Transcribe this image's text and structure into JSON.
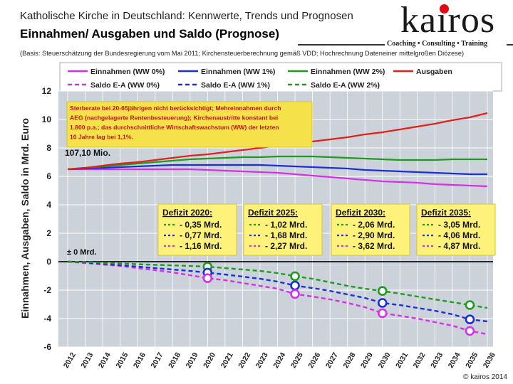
{
  "header": {
    "title": "Katholische Kirche in Deutschland: Kennwerte, Trends und Prognosen",
    "subtitle": "Einnahmen/ Ausgaben und Saldo (Prognose)",
    "logo": "kairos",
    "tagline": "Coaching • Consulting • Training",
    "basis": "(Basis: Steuerschätzung der Bundesregierung vom Mai 2011; Kirchensteuerberechnung gemäß VDD; Hochrechnung Dateneiner mittelgroßen Diözese)",
    "copyright": "© kairos 2014"
  },
  "colors": {
    "magenta": "#d630e6",
    "blue": "#1a2fd6",
    "green": "#1e9a1e",
    "red": "#e0201a",
    "plot_bg": "#ccd2da",
    "note_bg": "#f5e14a",
    "box_bg": "#fff27a"
  },
  "chart_data": {
    "type": "line",
    "ylabel": "Einnahmen, Ausgaben, Saldo in Mrd. Euro",
    "xlabel": "",
    "ylim": [
      -6,
      12
    ],
    "yticks": [
      -6,
      -4,
      -2,
      0,
      2,
      4,
      6,
      8,
      10,
      12
    ],
    "grid": true,
    "categories": [
      "2012",
      "2013",
      "2014",
      "2015",
      "2016",
      "2017",
      "2018",
      "2019",
      "2020",
      "2021",
      "2022",
      "2023",
      "2024",
      "2025",
      "2026",
      "2027",
      "2028",
      "2029",
      "2030",
      "2031",
      "2032",
      "2033",
      "2034",
      "2035",
      "2036"
    ],
    "legend": [
      {
        "name": "Einnahmen (WW 0%)",
        "color": "#d630e6",
        "dash": false
      },
      {
        "name": "Einnahmen (WW 1%)",
        "color": "#1a2fd6",
        "dash": false
      },
      {
        "name": "Einnahmen (WW 2%)",
        "color": "#1e9a1e",
        "dash": false
      },
      {
        "name": "Ausgaben",
        "color": "#e0201a",
        "dash": false
      },
      {
        "name": "Saldo E-A (WW 0%)",
        "color": "#d630e6",
        "dash": true
      },
      {
        "name": "Saldo E-A (WW 1%)",
        "color": "#1a2fd6",
        "dash": true
      },
      {
        "name": "Saldo E-A (WW 2%)",
        "color": "#1e9a1e",
        "dash": true
      }
    ],
    "series": [
      {
        "name": "Einnahmen (WW 0%)",
        "color": "#d630e6",
        "dash": false,
        "values": [
          6.5,
          6.5,
          6.5,
          6.5,
          6.5,
          6.5,
          6.5,
          6.5,
          6.45,
          6.4,
          6.35,
          6.3,
          6.25,
          6.15,
          6.05,
          5.95,
          5.85,
          5.75,
          5.65,
          5.6,
          5.55,
          5.45,
          5.4,
          5.35,
          5.3
        ]
      },
      {
        "name": "Einnahmen (WW 1%)",
        "color": "#1a2fd6",
        "dash": false,
        "values": [
          6.5,
          6.55,
          6.6,
          6.65,
          6.7,
          6.75,
          6.8,
          6.8,
          6.8,
          6.8,
          6.8,
          6.8,
          6.75,
          6.7,
          6.65,
          6.6,
          6.55,
          6.45,
          6.4,
          6.35,
          6.3,
          6.25,
          6.2,
          6.15,
          6.15
        ]
      },
      {
        "name": "Einnahmen (WW 2%)",
        "color": "#1e9a1e",
        "dash": false,
        "values": [
          6.5,
          6.6,
          6.7,
          6.8,
          6.9,
          7.0,
          7.1,
          7.2,
          7.25,
          7.3,
          7.35,
          7.35,
          7.4,
          7.4,
          7.4,
          7.35,
          7.3,
          7.25,
          7.2,
          7.15,
          7.15,
          7.15,
          7.2,
          7.2,
          7.2
        ]
      },
      {
        "name": "Ausgaben",
        "color": "#e0201a",
        "dash": false,
        "values": [
          6.5,
          6.6,
          6.75,
          6.9,
          7.0,
          7.15,
          7.3,
          7.45,
          7.55,
          7.7,
          7.85,
          8.0,
          8.15,
          8.3,
          8.45,
          8.6,
          8.75,
          8.95,
          9.1,
          9.3,
          9.5,
          9.7,
          9.95,
          10.15,
          10.45
        ]
      },
      {
        "name": "Saldo E-A (WW 0%)",
        "color": "#d630e6",
        "dash": true,
        "values": [
          0,
          -0.1,
          -0.2,
          -0.3,
          -0.45,
          -0.6,
          -0.75,
          -0.95,
          -1.16,
          -1.3,
          -1.5,
          -1.7,
          -1.9,
          -2.27,
          -2.45,
          -2.65,
          -2.9,
          -3.2,
          -3.62,
          -3.8,
          -4.0,
          -4.25,
          -4.5,
          -4.87,
          -5.1
        ]
      },
      {
        "name": "Saldo E-A (WW 1%)",
        "color": "#1a2fd6",
        "dash": true,
        "values": [
          0,
          -0.05,
          -0.15,
          -0.25,
          -0.35,
          -0.45,
          -0.55,
          -0.65,
          -0.77,
          -0.9,
          -1.05,
          -1.2,
          -1.4,
          -1.68,
          -1.85,
          -2.05,
          -2.3,
          -2.55,
          -2.9,
          -3.05,
          -3.25,
          -3.45,
          -3.7,
          -4.06,
          -4.2
        ]
      },
      {
        "name": "Saldo E-A (WW 2%)",
        "color": "#1e9a1e",
        "dash": true,
        "values": [
          0,
          -0.02,
          -0.08,
          -0.12,
          -0.18,
          -0.22,
          -0.26,
          -0.3,
          -0.35,
          -0.45,
          -0.55,
          -0.65,
          -0.8,
          -1.02,
          -1.2,
          -1.45,
          -1.7,
          -1.9,
          -2.06,
          -2.25,
          -2.45,
          -2.65,
          -2.85,
          -3.05,
          -3.25
        ]
      }
    ],
    "markers": [
      {
        "year": "2020",
        "values": [
          -0.35,
          -0.77,
          -1.16
        ]
      },
      {
        "year": "2025",
        "values": [
          -1.02,
          -1.68,
          -2.27
        ]
      },
      {
        "year": "2030",
        "values": [
          -2.06,
          -2.9,
          -3.62
        ]
      },
      {
        "year": "2035",
        "values": [
          -3.05,
          -4.06,
          -4.87
        ]
      }
    ],
    "annotations": {
      "note_lines": [
        "Sterberate bei 20-65jährigen nicht berücksichtigt; Mehreinnahmen durch",
        "AEG (nachgelagerte Rentenbesteuerung); Kirchenaustritte konstant bei",
        "1.800 p.a.; das durchschnittliche Wirtschaftswachstum (WW) der letzten",
        "10 Jahre lag bei 1,1%."
      ],
      "start_label": "107,10 Mio.",
      "zero_label": "± 0 Mrd."
    },
    "deficit_boxes": [
      {
        "title": "Defizit 2020:",
        "lines": [
          "- 0,35 Mrd.",
          "- 0,77 Mrd.",
          "- 1,16 Mrd."
        ]
      },
      {
        "title": "Defizit 2025:",
        "lines": [
          "- 1,02 Mrd.",
          "- 1,68 Mrd.",
          "- 2,27 Mrd."
        ]
      },
      {
        "title": "Defizit 2030:",
        "lines": [
          "- 2,06 Mrd.",
          "- 2,90 Mrd.",
          "- 3,62 Mrd."
        ]
      },
      {
        "title": "Defizit 2035:",
        "lines": [
          "- 3,05 Mrd.",
          "- 4,06 Mrd.",
          "- 4,87 Mrd."
        ]
      }
    ]
  }
}
